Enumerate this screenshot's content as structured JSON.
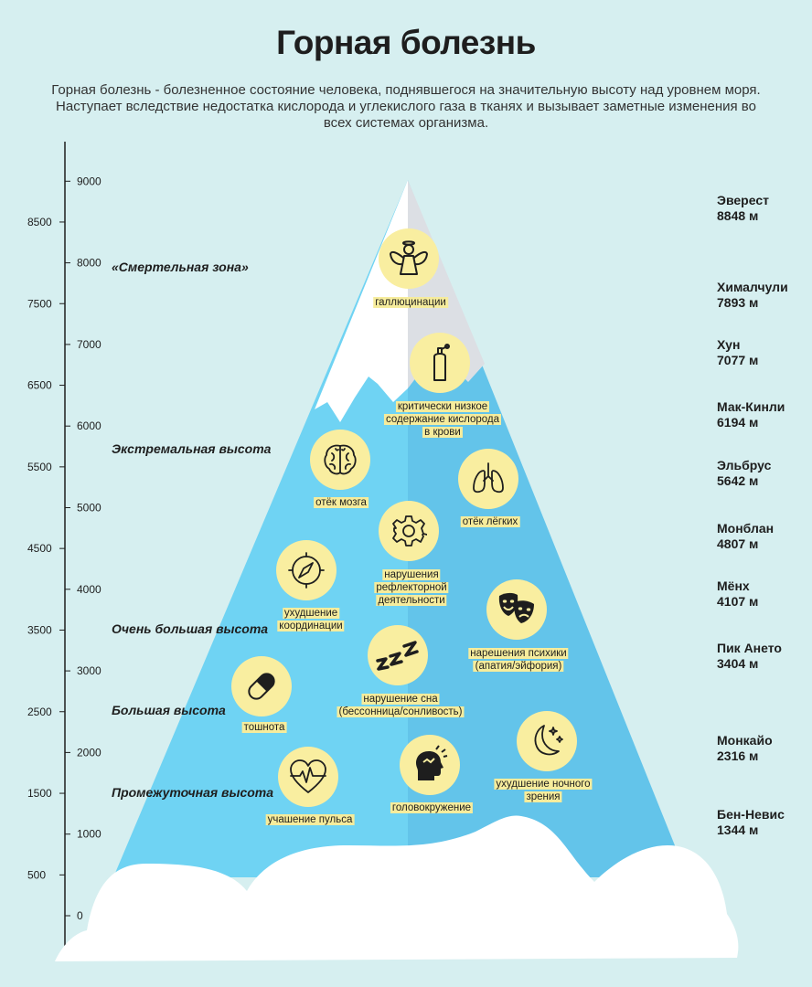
{
  "title": "Горная болезнь",
  "subtitle": "Горная болезнь - болезненное состояние человека, поднявшегося на значительную высоту над уровнем моря. Наступает вследствие недостатка кислорода и углекислого газа в тканях и вызывает заметные изменения во всех системах организма.",
  "colors": {
    "background": "#d6eff0",
    "mountain_light": "#6fd3f3",
    "mountain_shadow": "#63c4ea",
    "snow": "#ffffff",
    "snow_shadow": "#dcdfe4",
    "icon_circle": "#f9eea0",
    "label_highlight": "#f6ec9c"
  },
  "scale": {
    "left_ticks": [
      "500",
      "1500",
      "2500",
      "3500",
      "4500",
      "5500",
      "6500",
      "7500",
      "8500"
    ],
    "right_ticks": [
      "0",
      "1000",
      "2000",
      "3000",
      "4000",
      "5000",
      "6000",
      "7000",
      "8000",
      "9000"
    ]
  },
  "zones": [
    {
      "id": "death",
      "label": "«Смертельная зона»"
    },
    {
      "id": "extreme",
      "label": "Экстремальная высота"
    },
    {
      "id": "very-high",
      "label": "Очень большая высота"
    },
    {
      "id": "high",
      "label": "Большая высота"
    },
    {
      "id": "intermediate",
      "label": "Промежуточная высота"
    }
  ],
  "peaks": [
    {
      "name": "Эверест",
      "height": "8848 м"
    },
    {
      "name": "Хималчули",
      "height": "7893 м"
    },
    {
      "name": "Хун",
      "height": "7077 м"
    },
    {
      "name": "Мак-Кинли",
      "height": "6194 м"
    },
    {
      "name": "Эльбрус",
      "height": "5642 м"
    },
    {
      "name": "Монблан",
      "height": "4807 м"
    },
    {
      "name": "Мёнх",
      "height": "4107 м"
    },
    {
      "name": "Пик Ането",
      "height": "3404 м"
    },
    {
      "name": "Монкайо",
      "height": "2316 м"
    },
    {
      "name": "Бен-Невис",
      "height": "1344 м"
    }
  ],
  "symptoms": [
    {
      "id": "hallucinations",
      "icon": "angel-icon",
      "label": "галлюцинации"
    },
    {
      "id": "oxygen",
      "icon": "oxygen-tank-icon",
      "label": "критически низкое\nсодержание кислорода\nв крови"
    },
    {
      "id": "brain-edema",
      "icon": "brain-icon",
      "label": "отёк мозга"
    },
    {
      "id": "lung-edema",
      "icon": "lungs-icon",
      "label": "отёк лёгких"
    },
    {
      "id": "reflex",
      "icon": "gear-icon",
      "label": "нарушения\nрефлекторной\nдеятельности"
    },
    {
      "id": "coordination",
      "icon": "compass-icon",
      "label": "ухудшение\nкоординации"
    },
    {
      "id": "psyche",
      "icon": "theater-masks-icon",
      "label": "нарешения психики\n(апатия/эйфория)"
    },
    {
      "id": "sleep",
      "icon": "sleep-zzz-icon",
      "label": "нарушение сна\n(бессонница/сонливость)"
    },
    {
      "id": "nausea",
      "icon": "pill-icon",
      "label": "тошнота"
    },
    {
      "id": "night-vision",
      "icon": "moon-stars-icon",
      "label": "ухудшение ночного\nзрения"
    },
    {
      "id": "pulse",
      "icon": "heart-pulse-icon",
      "label": "учашение пульса"
    },
    {
      "id": "dizziness",
      "icon": "dizzy-head-icon",
      "label": "головокружение"
    }
  ]
}
